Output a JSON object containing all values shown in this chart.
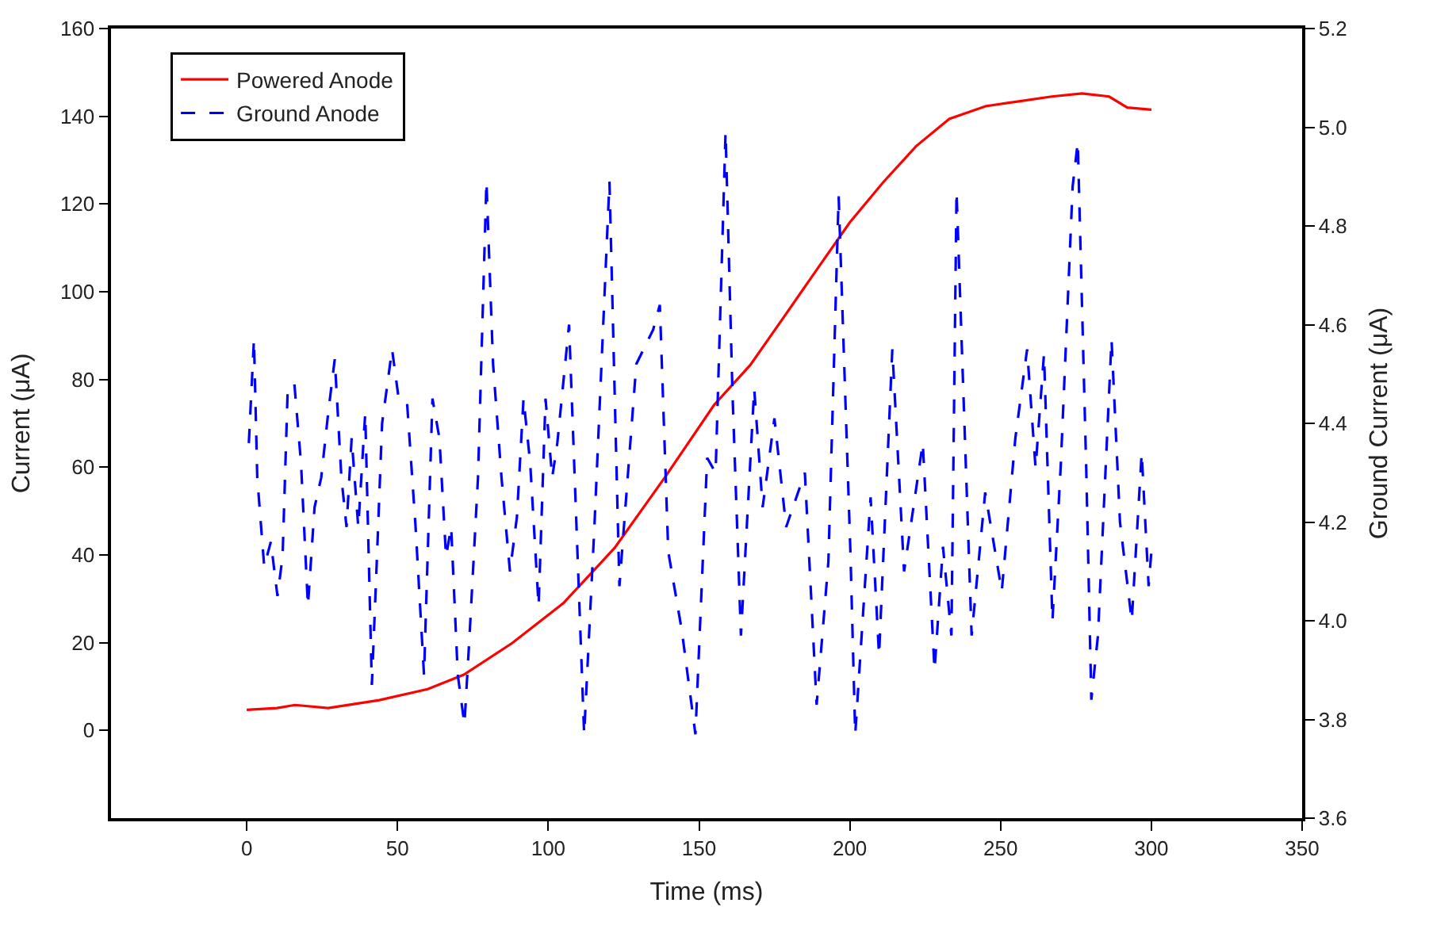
{
  "chart_data": {
    "type": "line",
    "xlabel": "Time (ms)",
    "ylabel": "Current (μA)",
    "y2label": "Ground Current (μA)",
    "xlim": [
      -45,
      350
    ],
    "xticks": [
      0,
      50,
      100,
      150,
      200,
      250,
      300,
      350
    ],
    "ylim": [
      -20,
      160
    ],
    "yticks": [
      0,
      20,
      40,
      60,
      80,
      100,
      120,
      140,
      160
    ],
    "y2lim": [
      3.6,
      5.2
    ],
    "y2ticks": [
      3.6,
      3.8,
      {
        "value": 4.0,
        "label": "4.0"
      },
      4.2,
      4.4,
      4.6,
      4.8,
      {
        "value": 5.0,
        "label": "5.0"
      },
      5.2
    ],
    "grid": false,
    "legend": "top left",
    "marker": "none",
    "series": [
      {
        "name": "Powered Anode",
        "color": "#ff0000",
        "line_style": "solid",
        "x": [
          0,
          10,
          16,
          27,
          44,
          60,
          72,
          88,
          105,
          122,
          139,
          155,
          167,
          178,
          189,
          200,
          211,
          222,
          233,
          245,
          256,
          267,
          277,
          286,
          292,
          300
        ],
        "values": [
          4.7,
          5.1,
          5.8,
          5.1,
          6.9,
          9.4,
          12.7,
          19.9,
          29,
          41.6,
          58,
          74.2,
          83.3,
          94.1,
          105,
          115.8,
          124.9,
          133.2,
          139.4,
          142.3,
          143.4,
          144.5,
          145.2,
          144.5,
          142,
          141.5
        ]
      },
      {
        "name": "Ground Anode",
        "color": "#0000ff",
        "line_style": "dashed",
        "axis": "y2",
        "x": [
          0.7,
          2.4,
          3.5,
          5.8,
          8.0,
          10.2,
          11.9,
          13.6,
          15.8,
          18.0,
          20.3,
          22.5,
          24.7,
          27.0,
          29.2,
          31.4,
          33.1,
          34.8,
          37.0,
          39.3,
          41.5,
          43.2,
          44.9,
          48.2,
          50.4,
          53.2,
          56.0,
          58.8,
          61.6,
          63.9,
          66.1,
          67.8,
          70.0,
          72.2,
          73.9,
          76.7,
          79.5,
          81.7,
          84.5,
          87.3,
          89.6,
          91.8,
          94.0,
          96.8,
          99.1,
          101.3,
          103.0,
          106.9,
          111.9,
          115.3,
          120.3,
          123.6,
          129.2,
          134.8,
          137.0,
          139.8,
          144.3,
          148.8,
          152.7,
          155.5,
          158.8,
          161.1,
          163.9,
          168.3,
          171.1,
          175.0,
          178.9,
          185.1,
          189.0,
          192.9,
          196.3,
          200.2,
          201.8,
          206.9,
          209.7,
          214.1,
          218.0,
          224.2,
          228.1,
          230.9,
          233.7,
          235.4,
          240.4,
          244.9,
          250.4,
          254.9,
          258.8,
          261.6,
          264.4,
          267.2,
          270.0,
          273.9,
          275.6,
          278.4,
          280.1,
          282.3,
          286.8,
          289.6,
          293.5,
          296.8,
          299.1,
          300.0
        ],
        "values": [
          4.36,
          4.57,
          4.29,
          4.11,
          4.16,
          4.05,
          4.13,
          4.47,
          4.48,
          4.32,
          4.03,
          4.23,
          4.29,
          4.42,
          4.53,
          4.29,
          4.19,
          4.37,
          4.19,
          4.42,
          3.87,
          4.13,
          4.4,
          4.55,
          4.45,
          4.44,
          4.19,
          3.89,
          4.45,
          4.37,
          4.13,
          4.19,
          3.89,
          3.79,
          3.97,
          4.29,
          4.89,
          4.52,
          4.29,
          4.1,
          4.21,
          4.45,
          4.32,
          4.03,
          4.45,
          4.29,
          4.36,
          4.6,
          3.77,
          4.19,
          4.89,
          4.07,
          4.52,
          4.59,
          4.64,
          4.14,
          3.98,
          3.77,
          4.33,
          4.3,
          4.99,
          4.46,
          3.97,
          4.47,
          4.23,
          4.41,
          4.19,
          4.3,
          3.83,
          4.12,
          4.86,
          4.14,
          3.77,
          4.25,
          3.93,
          4.55,
          4.1,
          4.36,
          3.9,
          4.15,
          3.97,
          4.87,
          3.97,
          4.26,
          4.06,
          4.37,
          4.55,
          4.31,
          4.54,
          4.0,
          4.32,
          4.88,
          4.97,
          4.31,
          3.84,
          3.97,
          4.57,
          4.2,
          4.0,
          4.34,
          4.07,
          4.14
        ]
      }
    ]
  }
}
